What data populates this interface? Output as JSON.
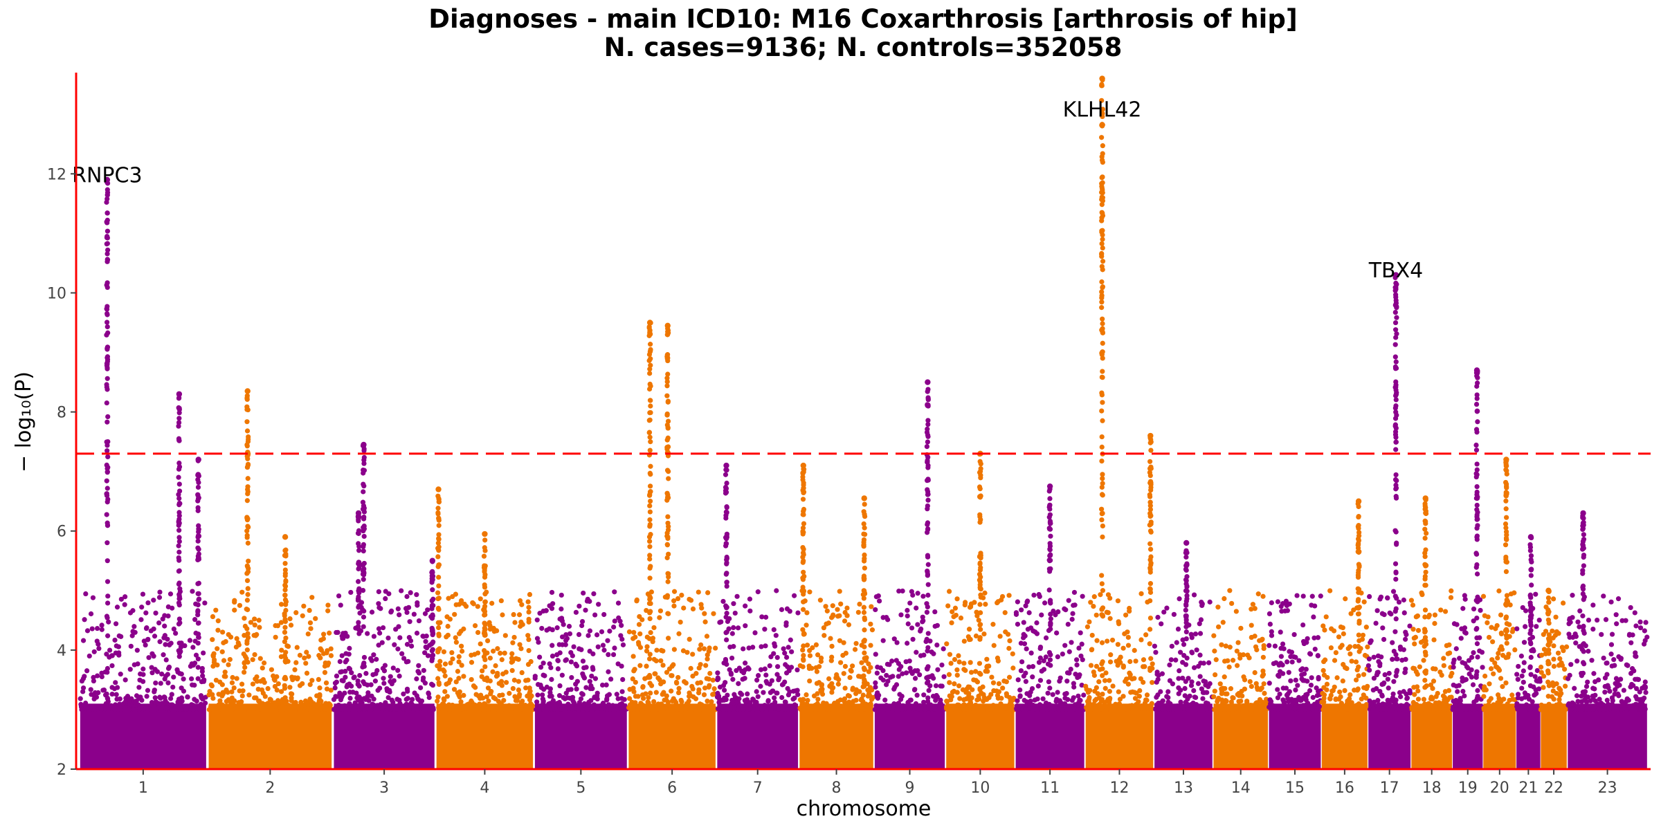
{
  "chart_data": {
    "type": "scatter",
    "title_line1": "Diagnoses - main ICD10: M16 Coxarthrosis [arthrosis of hip]",
    "title_line2": "N. cases=9136; N. controls=352058",
    "xlabel": "chromosome",
    "ylabel": "− log₁₀(P)",
    "ylim": [
      2,
      13.7
    ],
    "yticks": [
      2,
      4,
      6,
      8,
      10,
      12
    ],
    "significance_threshold": 7.3,
    "colors": {
      "odd_chromosomes": "#8B008B",
      "even_chromosomes": "#EE7600",
      "threshold": "#FF0000",
      "axis": "#FF0000"
    },
    "chromosomes": [
      {
        "label": "1",
        "length": 248
      },
      {
        "label": "2",
        "length": 242
      },
      {
        "label": "3",
        "length": 198
      },
      {
        "label": "4",
        "length": 190
      },
      {
        "label": "5",
        "length": 181
      },
      {
        "label": "6",
        "length": 171
      },
      {
        "label": "7",
        "length": 159
      },
      {
        "label": "8",
        "length": 145
      },
      {
        "label": "9",
        "length": 138
      },
      {
        "label": "10",
        "length": 134
      },
      {
        "label": "11",
        "length": 135
      },
      {
        "label": "12",
        "length": 133
      },
      {
        "label": "13",
        "length": 114
      },
      {
        "label": "14",
        "length": 107
      },
      {
        "label": "15",
        "length": 102
      },
      {
        "label": "16",
        "length": 90
      },
      {
        "label": "17",
        "length": 83
      },
      {
        "label": "18",
        "length": 80
      },
      {
        "label": "19",
        "length": 59
      },
      {
        "label": "20",
        "length": 64
      },
      {
        "label": "21",
        "length": 47
      },
      {
        "label": "22",
        "length": 51
      },
      {
        "label": "23",
        "length": 156
      }
    ],
    "peaks": [
      {
        "chr": "1",
        "pos": 0.22,
        "max": 11.9
      },
      {
        "chr": "1",
        "pos": 0.78,
        "max": 8.3
      },
      {
        "chr": "1",
        "pos": 0.93,
        "max": 7.2
      },
      {
        "chr": "2",
        "pos": 0.32,
        "max": 8.35
      },
      {
        "chr": "2",
        "pos": 0.62,
        "max": 5.9
      },
      {
        "chr": "3",
        "pos": 0.25,
        "max": 6.3
      },
      {
        "chr": "3",
        "pos": 0.3,
        "max": 7.45
      },
      {
        "chr": "3",
        "pos": 0.97,
        "max": 5.5
      },
      {
        "chr": "4",
        "pos": 0.03,
        "max": 6.7
      },
      {
        "chr": "4",
        "pos": 0.5,
        "max": 5.95
      },
      {
        "chr": "6",
        "pos": 0.25,
        "max": 9.5
      },
      {
        "chr": "6",
        "pos": 0.45,
        "max": 9.45
      },
      {
        "chr": "7",
        "pos": 0.12,
        "max": 7.1
      },
      {
        "chr": "8",
        "pos": 0.06,
        "max": 7.1
      },
      {
        "chr": "8",
        "pos": 0.87,
        "max": 6.55
      },
      {
        "chr": "9",
        "pos": 0.75,
        "max": 8.5
      },
      {
        "chr": "10",
        "pos": 0.5,
        "max": 7.3
      },
      {
        "chr": "11",
        "pos": 0.5,
        "max": 6.75
      },
      {
        "chr": "12",
        "pos": 0.25,
        "max": 13.6
      },
      {
        "chr": "12",
        "pos": 0.95,
        "max": 7.6
      },
      {
        "chr": "13",
        "pos": 0.55,
        "max": 5.8
      },
      {
        "chr": "16",
        "pos": 0.8,
        "max": 6.5
      },
      {
        "chr": "17",
        "pos": 0.65,
        "max": 10.3
      },
      {
        "chr": "18",
        "pos": 0.35,
        "max": 6.55
      },
      {
        "chr": "19",
        "pos": 0.8,
        "max": 8.7
      },
      {
        "chr": "20",
        "pos": 0.7,
        "max": 7.2
      },
      {
        "chr": "21",
        "pos": 0.6,
        "max": 5.9
      },
      {
        "chr": "22",
        "pos": 0.3,
        "max": 5.0
      },
      {
        "chr": "23",
        "pos": 0.2,
        "max": 6.3
      }
    ],
    "annotations": [
      {
        "chr": "1",
        "pos": 0.22,
        "label": "RNPC3",
        "y": 12.0
      },
      {
        "chr": "12",
        "pos": 0.25,
        "label": "KLHL42",
        "y": 13.1
      },
      {
        "chr": "17",
        "pos": 0.65,
        "label": "TBX4",
        "y": 10.4
      }
    ]
  }
}
